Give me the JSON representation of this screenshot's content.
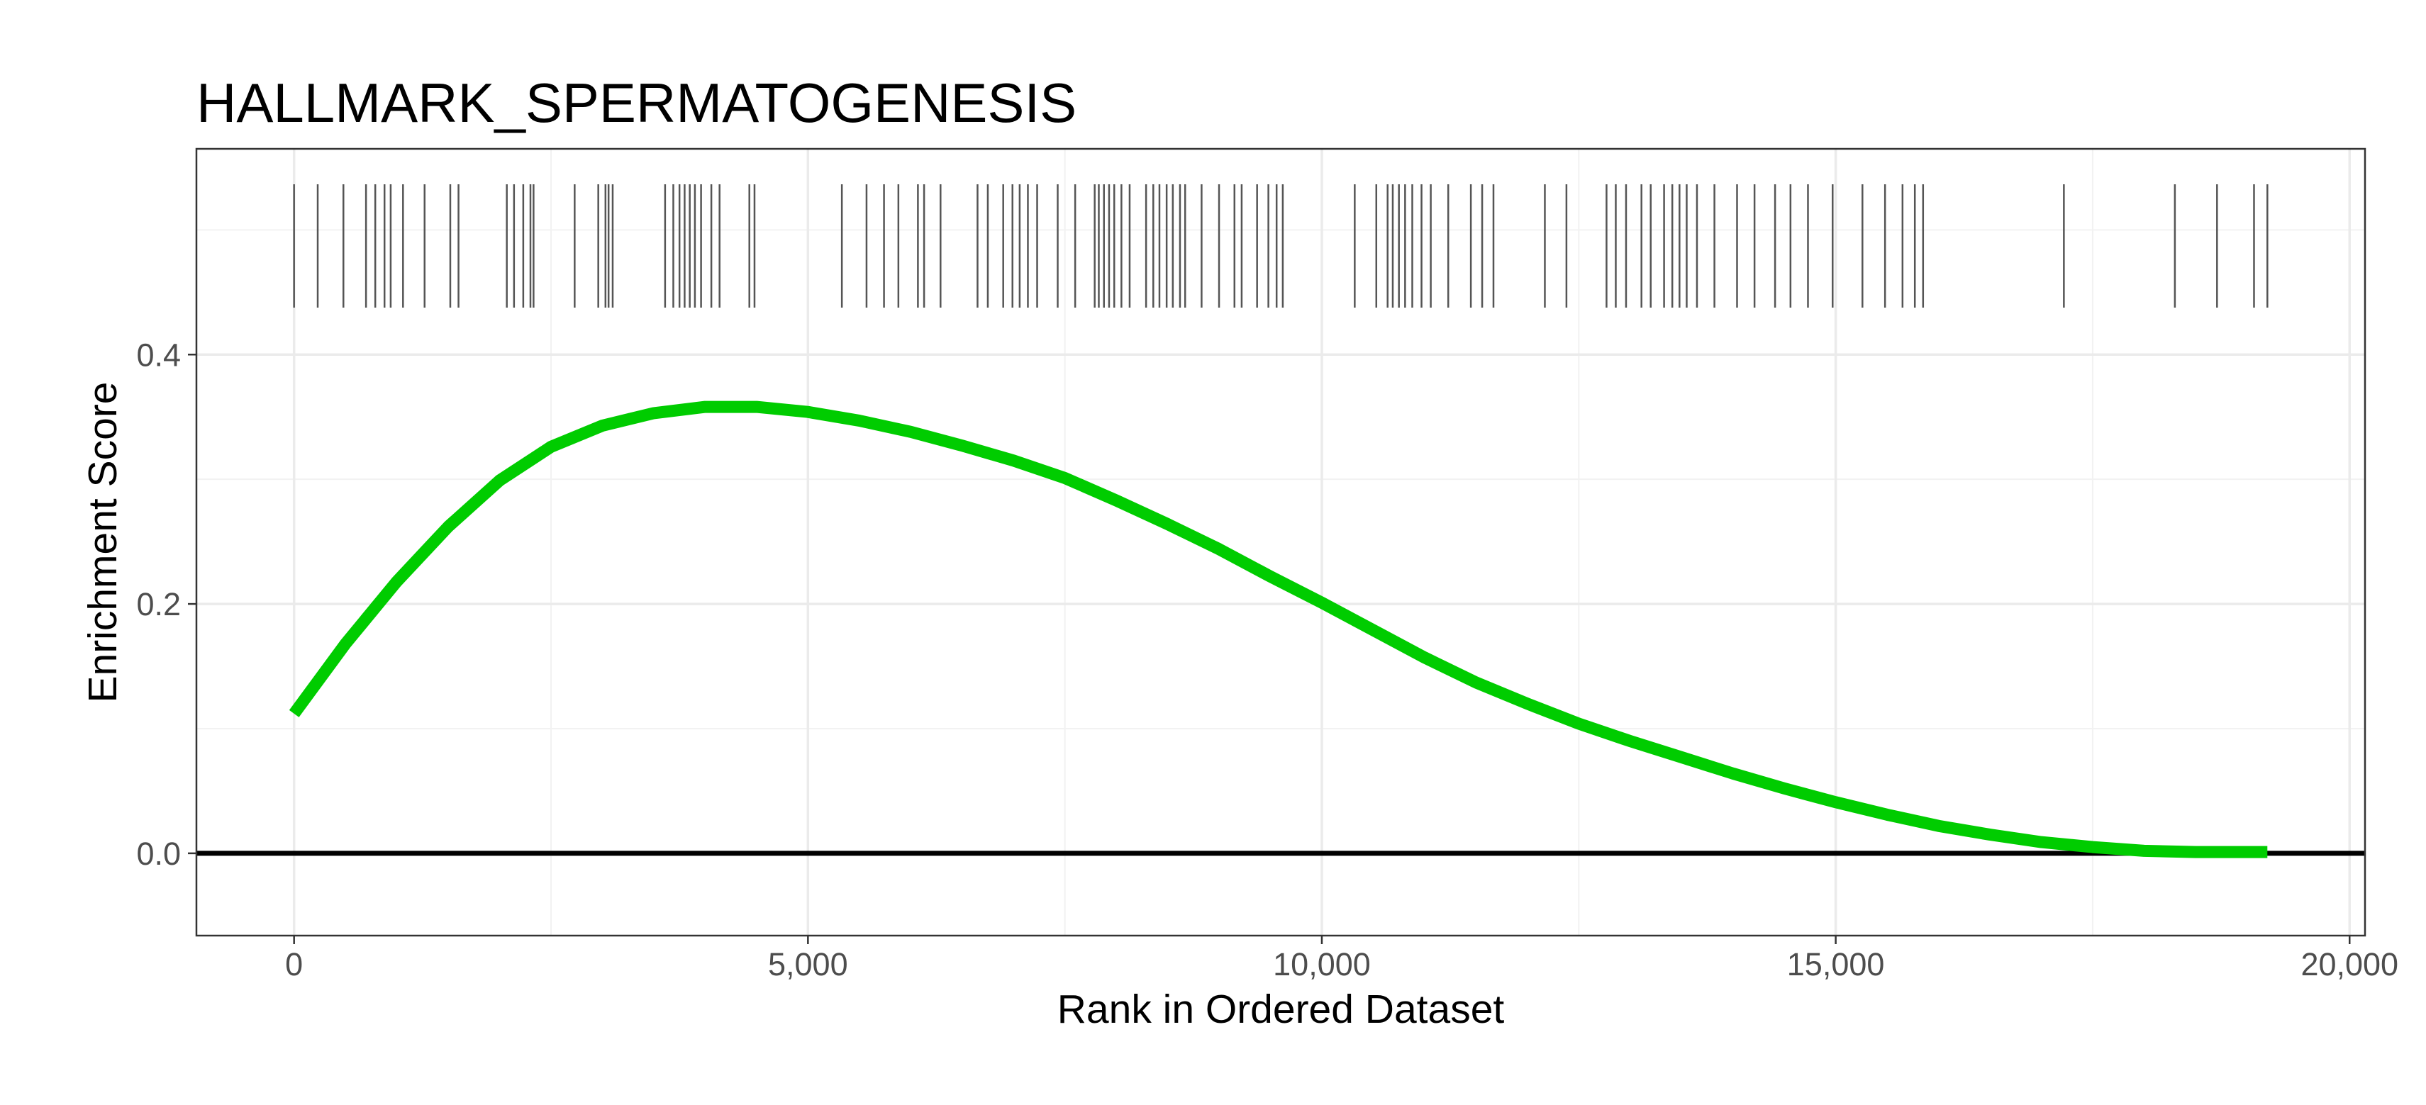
{
  "chart_data": {
    "type": "line",
    "title": "HALLMARK_SPERMATOGENESIS",
    "xlabel": "Rank in Ordered Dataset",
    "ylabel": "Enrichment Score",
    "xlim": [
      -950,
      20150
    ],
    "ylim": [
      -0.066,
      0.565
    ],
    "x_ticks": [
      0,
      5000,
      10000,
      15000,
      20000
    ],
    "x_tick_labels": [
      "0",
      "5,000",
      "10,000",
      "15,000",
      "20,000"
    ],
    "y_ticks": [
      0.0,
      0.2,
      0.4
    ],
    "y_tick_labels": [
      "0.0",
      "0.2",
      "0.4"
    ],
    "grid": true,
    "zero_line": 0.0,
    "series": [
      {
        "color": "#00cc00",
        "x": [
          0,
          500,
          1000,
          1500,
          2000,
          2500,
          3000,
          3500,
          4000,
          4500,
          5000,
          5500,
          6000,
          6500,
          7000,
          7500,
          8000,
          8500,
          9000,
          9500,
          10000,
          10500,
          11000,
          11500,
          12000,
          12500,
          13000,
          13500,
          14000,
          14500,
          15000,
          15500,
          16000,
          16500,
          17000,
          17500,
          18000,
          18500,
          19000,
          19200
        ],
        "y": [
          0.112,
          0.168,
          0.218,
          0.262,
          0.299,
          0.326,
          0.343,
          0.353,
          0.358,
          0.358,
          0.354,
          0.347,
          0.338,
          0.327,
          0.315,
          0.301,
          0.283,
          0.264,
          0.244,
          0.222,
          0.201,
          0.179,
          0.157,
          0.137,
          0.12,
          0.104,
          0.09,
          0.077,
          0.064,
          0.052,
          0.041,
          0.031,
          0.022,
          0.015,
          0.009,
          0.005,
          0.002,
          0.001,
          0.001,
          0.001
        ]
      }
    ],
    "gene_hits": [
      0,
      230,
      480,
      700,
      790,
      880,
      940,
      1060,
      1270,
      1520,
      1600,
      2070,
      2140,
      2230,
      2300,
      2330,
      2730,
      2960,
      3030,
      3060,
      3100,
      3610,
      3690,
      3750,
      3800,
      3850,
      3900,
      3960,
      4060,
      4140,
      4430,
      4480,
      5330,
      5570,
      5740,
      5880,
      6070,
      6130,
      6290,
      6650,
      6750,
      6900,
      6990,
      7060,
      7140,
      7230,
      7430,
      7600,
      7790,
      7830,
      7880,
      7930,
      7980,
      8050,
      8130,
      8290,
      8360,
      8420,
      8490,
      8550,
      8620,
      8670,
      8830,
      9000,
      9150,
      9220,
      9370,
      9480,
      9560,
      9620,
      10320,
      10530,
      10640,
      10690,
      10750,
      10810,
      10880,
      10970,
      11060,
      11230,
      11450,
      11560,
      11670,
      12170,
      12380,
      12770,
      12860,
      12960,
      13110,
      13200,
      13330,
      13410,
      13480,
      13550,
      13650,
      13820,
      14040,
      14210,
      14410,
      14560,
      14730,
      14970,
      15260,
      15480,
      15650,
      15770,
      15850,
      17220,
      18300,
      18710,
      19070,
      19200
    ]
  }
}
